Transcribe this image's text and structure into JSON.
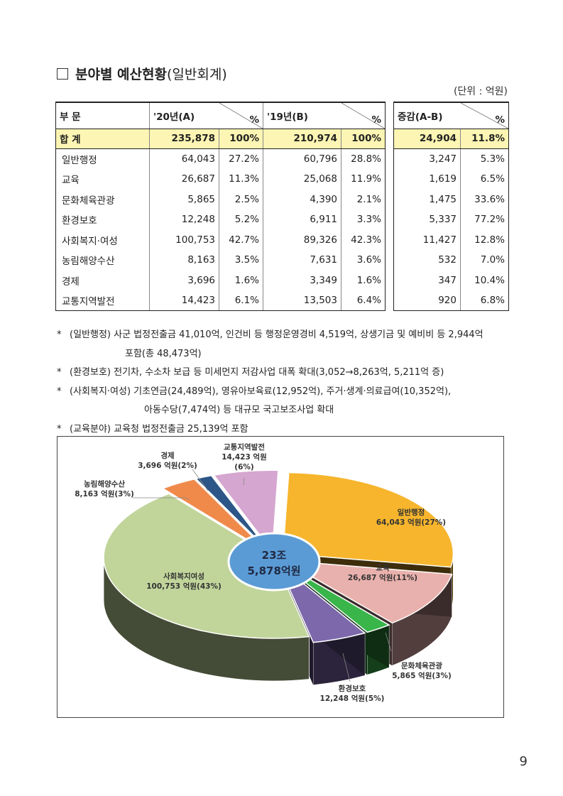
{
  "heading": {
    "box_icon": "square-outline-icon",
    "main": "분야별 예산현황",
    "sub": "(일반회계)"
  },
  "unit_note": "(단위 : 억원)",
  "table": {
    "header": {
      "col1": "부 문",
      "col2": "'20년(A)",
      "col3": "'19년(B)",
      "col4": "증감(A-B)",
      "pct": "%"
    },
    "total": {
      "label": "합 계",
      "a20": "235,878",
      "p20": "100%",
      "a19": "210,974",
      "p19": "100%",
      "diff": "24,904",
      "pdiff": "11.8%"
    },
    "rows": [
      {
        "label": "일반행정",
        "a20": "64,043",
        "p20": "27.2%",
        "a19": "60,796",
        "p19": "28.8%",
        "diff": "3,247",
        "pdiff": "5.3%"
      },
      {
        "label": "교육",
        "a20": "26,687",
        "p20": "11.3%",
        "a19": "25,068",
        "p19": "11.9%",
        "diff": "1,619",
        "pdiff": "6.5%"
      },
      {
        "label": "문화체육관광",
        "a20": "5,865",
        "p20": "2.5%",
        "a19": "4,390",
        "p19": "2.1%",
        "diff": "1,475",
        "pdiff": "33.6%"
      },
      {
        "label": "환경보호",
        "a20": "12,248",
        "p20": "5.2%",
        "a19": "6,911",
        "p19": "3.3%",
        "diff": "5,337",
        "pdiff": "77.2%"
      },
      {
        "label": "사회복지·여성",
        "a20": "100,753",
        "p20": "42.7%",
        "a19": "89,326",
        "p19": "42.3%",
        "diff": "11,427",
        "pdiff": "12.8%"
      },
      {
        "label": "농림해양수산",
        "a20": "8,163",
        "p20": "3.5%",
        "a19": "7,631",
        "p19": "3.6%",
        "diff": "532",
        "pdiff": "7.0%"
      },
      {
        "label": "경제",
        "a20": "3,696",
        "p20": "1.6%",
        "a19": "3,349",
        "p19": "1.6%",
        "diff": "347",
        "pdiff": "10.4%"
      },
      {
        "label": "교통지역발전",
        "a20": "14,423",
        "p20": "6.1%",
        "a19": "13,503",
        "p19": "6.4%",
        "diff": "920",
        "pdiff": "6.8%"
      }
    ]
  },
  "notes": {
    "n1_mark": "*",
    "n1_line1": "(일반행정) 사군 법정전출금 41,010억, 인건비 등 행정운영경비 4,519억, 상생기금 및 예비비 등 2,944억",
    "n1_line2": "포함(총 48,473억)",
    "n2_mark": "*",
    "n2_line1": "(환경보호) 전기차, 수소차 보급 등 미세먼지 저감사업 대폭 확대(3,052→8,263억, 5,211억 증)",
    "n3_mark": "*",
    "n3_line1": "(사회복지·여성) 기초연금(24,489억), 영유아보육료(12,952억), 주거·생계·의료급여(10,352억),",
    "n3_line2": "아동수당(7,474억) 등 대규모 국고보조사업 확대",
    "n4_mark": "*",
    "n4_line1": "(교육분야) 교육청 법정전출금 25,139억 포함"
  },
  "chart_data": {
    "type": "pie",
    "center_label": [
      "23조",
      "5,878억원"
    ],
    "slices": [
      {
        "label": "일반행정",
        "value": 64043,
        "text": "64,043 억원(27%)",
        "color": "#f6b52c"
      },
      {
        "label": "교육",
        "value": 26687,
        "text": "26,687 억원(11%)",
        "color": "#e9b1ad"
      },
      {
        "label": "문화체육관광",
        "value": 5865,
        "text": "5,865 억원(3%)",
        "color": "#39b54a"
      },
      {
        "label": "환경보호",
        "value": 12248,
        "text": "12,248 억원(5%)",
        "color": "#7d68ab"
      },
      {
        "label": "사회복지여성",
        "value": 100753,
        "text": "100,753 억원(43%)",
        "color": "#c1d59b"
      },
      {
        "label": "농림해양수산",
        "value": 8163,
        "text": "8,163 억원(3%)",
        "color": "#f08a4b"
      },
      {
        "label": "경제",
        "value": 3696,
        "text": "3,696 억원(2%)",
        "color": "#2b5687"
      },
      {
        "label": "교통지역발전",
        "value": 14423,
        "text": "14,423 억원(6%)",
        "color": "#d5a6cf"
      }
    ],
    "outer_labels": {
      "economy": [
        "경제",
        "3,696 억원(2%)"
      ],
      "transport": [
        "교통지역발전",
        "14,423 억원",
        "(6%)"
      ],
      "agri": [
        "농림해양수산",
        "8,163 억원(3%)"
      ],
      "culture": [
        "문화체육관광",
        "5,865 억원(3%)"
      ],
      "env": [
        "환경보호",
        "12,248 억원(5%)"
      ]
    }
  },
  "page_number": "9"
}
